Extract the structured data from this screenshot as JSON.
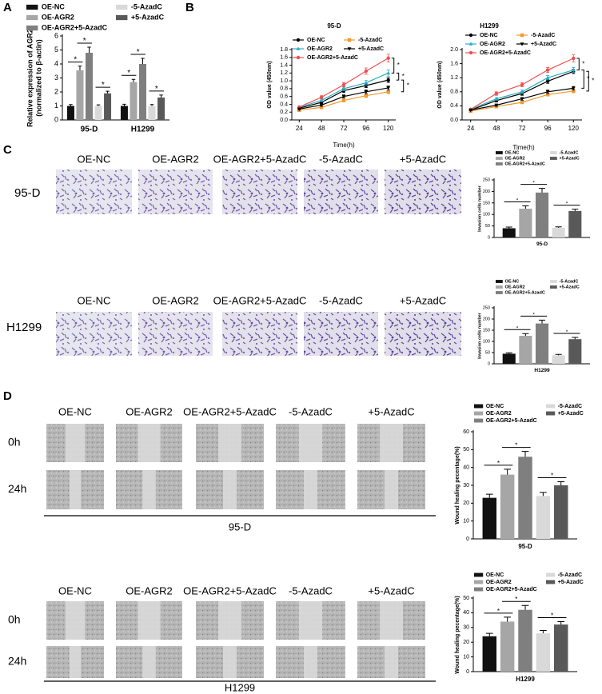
{
  "chart_data": [
    {
      "type": "bar",
      "ylabel": [
        "Relative expression of AGR2",
        "(normalized to β-actin)"
      ],
      "categories": [
        "95-D",
        "H1299"
      ],
      "series": [
        {
          "name": "OE-NC",
          "color": "#111111",
          "values": [
            1.0,
            1.0
          ],
          "errors": [
            0.1,
            0.12
          ]
        },
        {
          "name": "OE-AGR2",
          "color": "#a6a6a6",
          "values": [
            3.55,
            2.7
          ],
          "errors": [
            0.3,
            0.2
          ]
        },
        {
          "name": "OE-AGR2+5-AzadC",
          "color": "#7f7f7f",
          "values": [
            4.8,
            4.0
          ],
          "errors": [
            0.4,
            0.4
          ]
        },
        {
          "name": "-5-AzadC",
          "color": "#d9d9d9",
          "values": [
            1.0,
            1.0
          ],
          "errors": [
            0.08,
            0.1
          ]
        },
        {
          "name": "+5-AzadC",
          "color": "#595959",
          "values": [
            1.9,
            1.6
          ],
          "errors": [
            0.15,
            0.18
          ]
        }
      ],
      "ylim": [
        0,
        6
      ],
      "yticks": [
        0,
        1,
        2,
        3,
        4,
        5,
        6
      ],
      "significance": [
        {
          "category": 0,
          "series": [
            0,
            1
          ],
          "label": "*"
        },
        {
          "category": 0,
          "series": [
            1,
            2
          ],
          "label": "*"
        },
        {
          "category": 0,
          "series": [
            3,
            4
          ],
          "label": "*"
        },
        {
          "category": 1,
          "series": [
            0,
            1
          ],
          "label": "*"
        },
        {
          "category": 1,
          "series": [
            1,
            2
          ],
          "label": "*"
        },
        {
          "category": 1,
          "series": [
            3,
            4
          ],
          "label": "*"
        }
      ]
    },
    {
      "type": "line",
      "title": "95-D",
      "ylabel": [
        "OD value (450nm)"
      ],
      "xlabel": "Time(h)",
      "x": [
        24,
        48,
        72,
        96,
        120
      ],
      "series": [
        {
          "name": "OE-NC",
          "color": "#000000",
          "marker": "circle",
          "values": [
            0.3,
            0.45,
            0.75,
            0.88,
            1.02
          ],
          "errors": [
            0.02,
            0.03,
            0.05,
            0.05,
            0.06
          ]
        },
        {
          "name": "OE-AGR2",
          "color": "#2aaec6",
          "marker": "triangle",
          "values": [
            0.32,
            0.5,
            0.8,
            0.95,
            1.2
          ],
          "errors": [
            0.02,
            0.03,
            0.05,
            0.06,
            0.08
          ]
        },
        {
          "name": "OE-AGR2+5-AzadC",
          "color": "#ef4f4f",
          "marker": "circle",
          "values": [
            0.33,
            0.58,
            0.9,
            1.25,
            1.58
          ],
          "errors": [
            0.02,
            0.04,
            0.06,
            0.08,
            0.1
          ]
        },
        {
          "name": "-5-AzadC",
          "color": "#f39a2c",
          "marker": "square",
          "values": [
            0.25,
            0.32,
            0.5,
            0.62,
            0.72
          ],
          "errors": [
            0.02,
            0.02,
            0.04,
            0.05,
            0.05
          ]
        },
        {
          "name": "+5-AzadC",
          "color": "#000000",
          "marker": "triangle-down",
          "values": [
            0.28,
            0.38,
            0.6,
            0.72,
            0.82
          ],
          "errors": [
            0.02,
            0.03,
            0.04,
            0.05,
            0.05
          ]
        }
      ],
      "xlim": [
        16,
        128
      ],
      "xticks": [
        24,
        48,
        72,
        96,
        120
      ],
      "ylim": [
        0,
        1.8
      ],
      "yticks": [
        {
          "value": 0,
          "label": "0.0"
        },
        {
          "value": 0.2,
          "label": "0.2"
        },
        {
          "value": 0.4,
          "label": "0.4"
        },
        {
          "value": 0.6,
          "label": "0.6"
        },
        {
          "value": 0.8,
          "label": "0.8"
        },
        {
          "value": 1,
          "label": "1.0"
        },
        {
          "value": 1.2,
          "label": "1.2"
        },
        {
          "value": 1.4,
          "label": "1.4"
        },
        {
          "value": 1.6,
          "label": "1.6"
        },
        {
          "value": 1.8,
          "label": "1.8"
        }
      ],
      "significance": [
        {
          "series": [
            2,
            1
          ],
          "label": "*"
        },
        {
          "series": [
            1,
            0
          ],
          "label": "*"
        },
        {
          "series": [
            0,
            3
          ],
          "label": "*"
        }
      ]
    },
    {
      "type": "line",
      "title": "H1299",
      "ylabel": [
        "OD value (450nm)"
      ],
      "xlabel": "Time(h)",
      "x": [
        24,
        48,
        72,
        96,
        120
      ],
      "series": [
        {
          "name": "OE-NC",
          "color": "#000000",
          "marker": "circle",
          "values": [
            0.28,
            0.55,
            0.75,
            1.1,
            1.38
          ],
          "errors": [
            0.02,
            0.04,
            0.05,
            0.06,
            0.06
          ]
        },
        {
          "name": "OE-AGR2",
          "color": "#2aaec6",
          "marker": "triangle",
          "values": [
            0.3,
            0.6,
            0.8,
            1.2,
            1.42
          ],
          "errors": [
            0.02,
            0.04,
            0.05,
            0.06,
            0.07
          ]
        },
        {
          "name": "OE-AGR2+5-AzadC",
          "color": "#ef4f4f",
          "marker": "circle",
          "values": [
            0.3,
            0.75,
            1.0,
            1.42,
            1.75
          ],
          "errors": [
            0.02,
            0.05,
            0.06,
            0.07,
            0.1
          ]
        },
        {
          "name": "-5-AzadC",
          "color": "#f39a2c",
          "marker": "square",
          "values": [
            0.25,
            0.38,
            0.5,
            0.72,
            0.82
          ],
          "errors": [
            0.02,
            0.03,
            0.04,
            0.04,
            0.05
          ]
        },
        {
          "name": "+5-AzadC",
          "color": "#000000",
          "marker": "triangle-down",
          "values": [
            0.28,
            0.42,
            0.6,
            0.8,
            0.9
          ],
          "errors": [
            0.02,
            0.03,
            0.04,
            0.05,
            0.05
          ]
        }
      ],
      "xlim": [
        16,
        128
      ],
      "xticks": [
        24,
        48,
        72,
        96,
        120
      ],
      "ylim": [
        0,
        2.0
      ],
      "yticks": [
        {
          "value": 0,
          "label": "0.0"
        },
        {
          "value": 0.4,
          "label": "0.4"
        },
        {
          "value": 0.8,
          "label": "0.8"
        },
        {
          "value": 1.2,
          "label": "1.2"
        },
        {
          "value": 1.6,
          "label": "1.6"
        },
        {
          "value": 2,
          "label": "2.0"
        }
      ],
      "significance": [
        {
          "series": [
            2,
            1
          ],
          "label": "*"
        },
        {
          "series": [
            1,
            4
          ],
          "label": "*"
        },
        {
          "series": [
            0,
            3
          ],
          "label": "*"
        }
      ]
    },
    {
      "type": "bar",
      "ylabel": [
        "Invasion cells number"
      ],
      "categories": [
        "95-D"
      ],
      "series": [
        {
          "name": "OE-NC",
          "color": "#111111",
          "values": [
            40
          ],
          "errors": [
            5
          ]
        },
        {
          "name": "OE-AGR2",
          "color": "#a6a6a6",
          "values": [
            125
          ],
          "errors": [
            12
          ]
        },
        {
          "name": "OE-AGR2+5-AzadC",
          "color": "#7f7f7f",
          "values": [
            195
          ],
          "errors": [
            18
          ]
        },
        {
          "name": "-5-AzadC",
          "color": "#d9d9d9",
          "values": [
            42
          ],
          "errors": [
            4
          ]
        },
        {
          "name": "+5-AzadC",
          "color": "#595959",
          "values": [
            115
          ],
          "errors": [
            8
          ]
        }
      ],
      "ylim": [
        0,
        250
      ],
      "yticks": [
        0,
        50,
        100,
        150,
        200,
        250
      ],
      "significance": [
        {
          "category": 0,
          "series": [
            0,
            1
          ],
          "label": "*"
        },
        {
          "category": 0,
          "series": [
            1,
            2
          ],
          "label": "*"
        },
        {
          "category": 0,
          "series": [
            3,
            4
          ],
          "label": "*"
        }
      ]
    },
    {
      "type": "bar",
      "ylabel": [
        "Invasion cells number"
      ],
      "categories": [
        "H1299"
      ],
      "series": [
        {
          "name": "OE-NC",
          "color": "#111111",
          "values": [
            45
          ],
          "errors": [
            4
          ]
        },
        {
          "name": "OE-AGR2",
          "color": "#a6a6a6",
          "values": [
            125
          ],
          "errors": [
            10
          ]
        },
        {
          "name": "OE-AGR2+5-AzadC",
          "color": "#7f7f7f",
          "values": [
            180
          ],
          "errors": [
            15
          ]
        },
        {
          "name": "-5-AzadC",
          "color": "#d9d9d9",
          "values": [
            38
          ],
          "errors": [
            4
          ]
        },
        {
          "name": "+5-AzadC",
          "color": "#595959",
          "values": [
            110
          ],
          "errors": [
            8
          ]
        }
      ],
      "ylim": [
        0,
        250
      ],
      "yticks": [
        0,
        50,
        100,
        150,
        200,
        250
      ],
      "significance": [
        {
          "category": 0,
          "series": [
            0,
            1
          ],
          "label": "*"
        },
        {
          "category": 0,
          "series": [
            1,
            2
          ],
          "label": "*"
        },
        {
          "category": 0,
          "series": [
            3,
            4
          ],
          "label": "*"
        }
      ]
    },
    {
      "type": "bar",
      "ylabel": [
        "Wound healing pecentage(%)"
      ],
      "categories": [
        "95-D"
      ],
      "series": [
        {
          "name": "OE-NC",
          "color": "#111111",
          "values": [
            23
          ],
          "errors": [
            2
          ]
        },
        {
          "name": "OE-AGR2",
          "color": "#a6a6a6",
          "values": [
            36
          ],
          "errors": [
            3
          ]
        },
        {
          "name": "OE-AGR2+5-AzadC",
          "color": "#7f7f7f",
          "values": [
            46
          ],
          "errors": [
            3
          ]
        },
        {
          "name": "-5-AzadC",
          "color": "#d9d9d9",
          "values": [
            24
          ],
          "errors": [
            2
          ]
        },
        {
          "name": "+5-AzadC",
          "color": "#595959",
          "values": [
            30
          ],
          "errors": [
            2
          ]
        }
      ],
      "ylim": [
        0,
        60
      ],
      "yticks": [
        0,
        10,
        20,
        30,
        40,
        50,
        60
      ],
      "significance": [
        {
          "category": 0,
          "series": [
            0,
            1
          ],
          "label": "*"
        },
        {
          "category": 0,
          "series": [
            1,
            2
          ],
          "label": "*"
        },
        {
          "category": 0,
          "series": [
            3,
            4
          ],
          "label": "*"
        }
      ]
    },
    {
      "type": "bar",
      "ylabel": [
        "Wound healing pecentage(%)"
      ],
      "categories": [
        "H1299"
      ],
      "series": [
        {
          "name": "OE-NC",
          "color": "#111111",
          "values": [
            24
          ],
          "errors": [
            2
          ]
        },
        {
          "name": "OE-AGR2",
          "color": "#a6a6a6",
          "values": [
            34
          ],
          "errors": [
            3
          ]
        },
        {
          "name": "OE-AGR2+5-AzadC",
          "color": "#7f7f7f",
          "values": [
            42
          ],
          "errors": [
            3
          ]
        },
        {
          "name": "-5-AzadC",
          "color": "#d9d9d9",
          "values": [
            26
          ],
          "errors": [
            2
          ]
        },
        {
          "name": "+5-AzadC",
          "color": "#595959",
          "values": [
            32
          ],
          "errors": [
            2
          ]
        }
      ],
      "ylim": [
        0,
        50
      ],
      "yticks": [
        0,
        10,
        20,
        30,
        40,
        50
      ],
      "significance": [
        {
          "category": 0,
          "series": [
            0,
            1
          ],
          "label": "*"
        },
        {
          "category": 0,
          "series": [
            1,
            2
          ],
          "label": "*"
        },
        {
          "category": 0,
          "series": [
            3,
            4
          ],
          "label": "*"
        }
      ]
    }
  ],
  "figure": {
    "panel_labels": [
      "A",
      "B",
      "C",
      "D"
    ],
    "invasion": {
      "rows": [
        {
          "label": "95-D",
          "columns": [
            "OE-NC",
            "OE-AGR2",
            "OE-AGR2+5-AzadC",
            "-5-AzadC",
            "+5-AzadC"
          ]
        },
        {
          "label": "H1299",
          "columns": [
            "OE-NC",
            "OE-AGR2",
            "OE-AGR2+5-AzadC",
            "-5-AzadC",
            "+5-AzadC"
          ]
        }
      ]
    },
    "wound": {
      "groups": [
        {
          "label": "95-D",
          "rows": [
            "0h",
            "24h"
          ],
          "columns": [
            "OE-NC",
            "OE-AGR2",
            "OE-AGR2+5-AzadC",
            "-5-AzadC",
            "+5-AzadC"
          ]
        },
        {
          "label": "H1299",
          "rows": [
            "0h",
            "24h"
          ],
          "columns": [
            "OE-NC",
            "OE-AGR2",
            "OE-AGR2+5-AzadC",
            "-5-AzadC",
            "+5-AzadC"
          ]
        }
      ]
    }
  }
}
